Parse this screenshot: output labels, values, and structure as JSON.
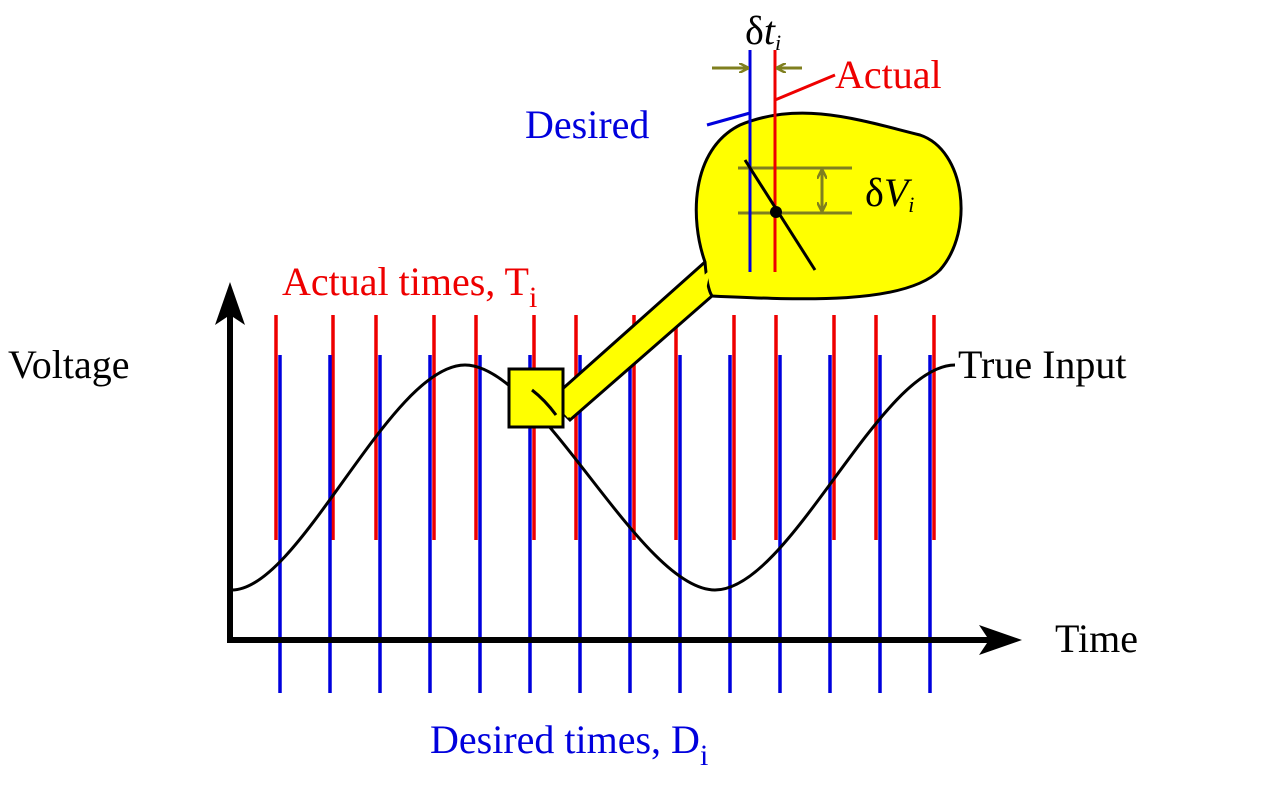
{
  "labels": {
    "voltage": "Voltage",
    "time": "Time",
    "true_input": "True Input",
    "actual_times": {
      "text": "Actual times, T",
      "subscript": "i"
    },
    "desired_times": {
      "text": "Desired times, D",
      "subscript": "i"
    },
    "desired": "Desired",
    "actual": "Actual",
    "delta_t": {
      "symbol": "δ",
      "variable": "t",
      "subscript": "i"
    },
    "delta_v": {
      "symbol": "δ",
      "variable": "V",
      "subscript": "i"
    }
  }
}
